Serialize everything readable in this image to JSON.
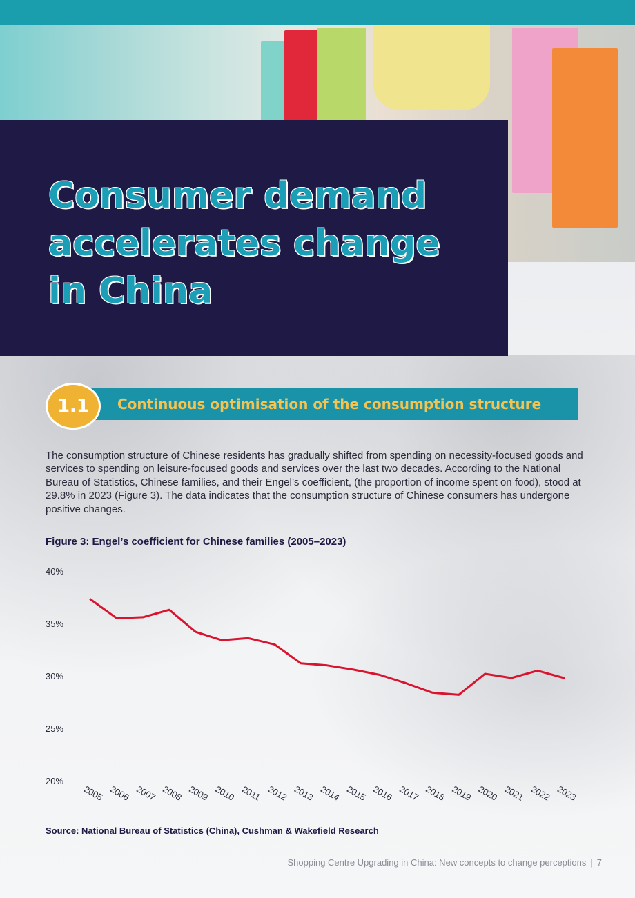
{
  "heading": {
    "title": "Consumer demand accelerates change in China"
  },
  "section": {
    "number": "1.1",
    "title": "Continuous optimisation of the consumption structure"
  },
  "body_text": "The consumption structure of Chinese residents has gradually shifted from spending on necessity-focused goods and services to spending on leisure-focused goods and services over the last two decades. According to the National Bureau of Statistics, Chinese families, and their Engel’s coefficient, (the proportion of income spent on food), stood at 29.8% in 2023 (Figure 3). The data indicates that the consumption structure of Chinese consumers has undergone positive changes.",
  "figure": {
    "title": "Figure 3: Engel’s coefficient for Chinese families (2005–2023)",
    "source": "Source: National Bureau of Statistics (China), Cushman & Wakefield Research"
  },
  "footer": {
    "text": "Shopping Centre Upgrading in China: New concepts to change perceptions",
    "page_number": "7"
  },
  "colors": {
    "navy": "#1f1a45",
    "teal": "#1a93a8",
    "gold": "#f0b233",
    "line": "#d9142f"
  },
  "chart_data": {
    "type": "line",
    "title": "Figure 3: Engel’s coefficient for Chinese families (2005–2023)",
    "categories": [
      "2005",
      "2006",
      "2007",
      "2008",
      "2009",
      "2010",
      "2011",
      "2012",
      "2013",
      "2014",
      "2015",
      "2016",
      "2017",
      "2018",
      "2019",
      "2020",
      "2021",
      "2022",
      "2023"
    ],
    "series": [
      {
        "values": [
          37.3,
          35.5,
          35.6,
          36.3,
          34.2,
          33.4,
          33.6,
          33.0,
          31.2,
          31.0,
          30.6,
          30.1,
          29.3,
          28.4,
          28.2,
          30.2,
          29.8,
          30.5,
          29.8
        ]
      }
    ],
    "yticks": [
      "20%",
      "25%",
      "30%",
      "35%",
      "40%"
    ],
    "ylim": [
      20,
      40
    ],
    "grid": false,
    "legend": "none",
    "line_color": "#d9142f"
  }
}
